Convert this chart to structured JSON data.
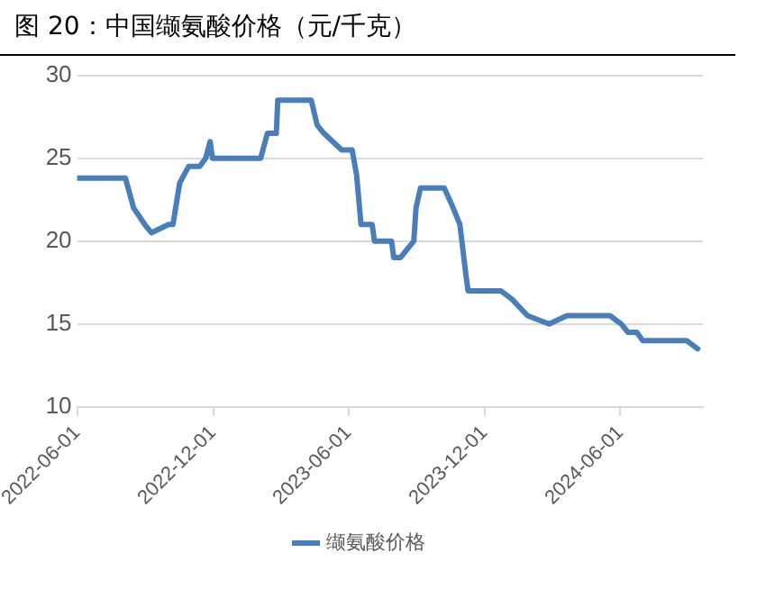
{
  "chart_data": {
    "type": "line",
    "title": "图 20：中国缬氨酸价格（元/千克）",
    "x": [
      "2022-06-01",
      "2022-08-05",
      "2022-08-16",
      "2022-08-31",
      "2022-09-09",
      "2022-10-02",
      "2022-10-08",
      "2022-10-17",
      "2022-10-29",
      "2022-11-13",
      "2022-11-21",
      "2022-11-27",
      "2022-11-30",
      "2023-02-03",
      "2023-02-12",
      "2023-02-24",
      "2023-02-26",
      "2023-04-12",
      "2023-04-20",
      "2023-04-29",
      "2023-05-11",
      "2023-05-23",
      "2023-06-06",
      "2023-06-12",
      "2023-06-18",
      "2023-07-03",
      "2023-07-06",
      "2023-07-29",
      "2023-08-01",
      "2023-08-10",
      "2023-08-28",
      "2023-08-31",
      "2023-09-06",
      "2023-10-08",
      "2023-10-20",
      "2023-10-29",
      "2023-11-06",
      "2023-11-09",
      "2023-12-23",
      "2024-01-07",
      "2024-01-28",
      "2024-02-26",
      "2024-03-21",
      "2024-05-18",
      "2024-06-02",
      "2024-06-11",
      "2024-06-23",
      "2024-07-01",
      "2024-08-29",
      "2024-09-13"
    ],
    "series": [
      {
        "name": "缬氨酸价格",
        "color": "#4a7ebb",
        "values": [
          23.8,
          23.8,
          22,
          21,
          20.5,
          21,
          21,
          23.5,
          24.5,
          24.5,
          25,
          26,
          25,
          25,
          26.5,
          26.5,
          28.5,
          28.5,
          27,
          26.5,
          26,
          25.5,
          25.5,
          24,
          21,
          21,
          20,
          20,
          19,
          19,
          20,
          22,
          23.2,
          23.2,
          22,
          21,
          18,
          17,
          17,
          16.5,
          15.5,
          15,
          15.5,
          15.5,
          15,
          14.5,
          14.5,
          14,
          14,
          13.5
        ]
      }
    ],
    "xlim": [
      "2022-06-01",
      "2024-09-20"
    ],
    "xticks": [
      "2022-06-01",
      "2022-12-01",
      "2023-06-01",
      "2023-12-01",
      "2024-06-01"
    ],
    "ylim": [
      10,
      30
    ],
    "yticks": [
      10,
      15,
      20,
      25,
      30
    ],
    "grid": "y",
    "legend": "bottom",
    "marker": "none",
    "line_style": "solid"
  }
}
